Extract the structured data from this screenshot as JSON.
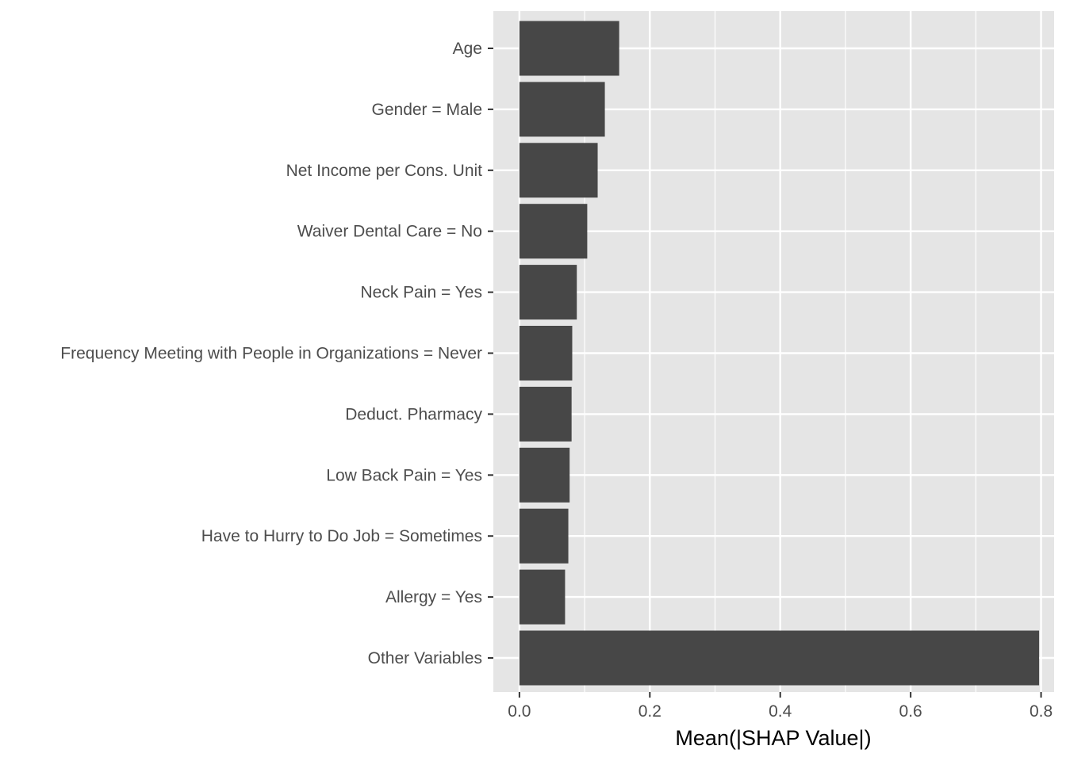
{
  "chart_data": {
    "type": "bar",
    "orientation": "horizontal",
    "categories": [
      "Age",
      "Gender = Male",
      "Net Income per Cons. Unit",
      "Waiver Dental Care = No",
      "Neck Pain = Yes",
      "Frequency Meeting with People in Organizations = Never",
      "Deduct. Pharmacy",
      "Low Back Pain = Yes",
      "Have to Hurry to Do Job = Sometimes",
      "Allergy = Yes",
      "Other Variables"
    ],
    "values": [
      0.153,
      0.131,
      0.12,
      0.104,
      0.088,
      0.081,
      0.08,
      0.077,
      0.075,
      0.07,
      0.797
    ],
    "xlabel": "Mean(|SHAP Value|)",
    "ylabel": "",
    "xlim": [
      -0.04,
      0.82
    ],
    "x_ticks": [
      0.0,
      0.2,
      0.4,
      0.6,
      0.8
    ],
    "x_tick_labels": [
      "0.0",
      "0.2",
      "0.4",
      "0.6",
      "0.8"
    ],
    "grid": true,
    "legend": "none",
    "colors": {
      "bar": "#474747",
      "panel": "#e5e5e5",
      "grid": "#ffffff"
    }
  }
}
